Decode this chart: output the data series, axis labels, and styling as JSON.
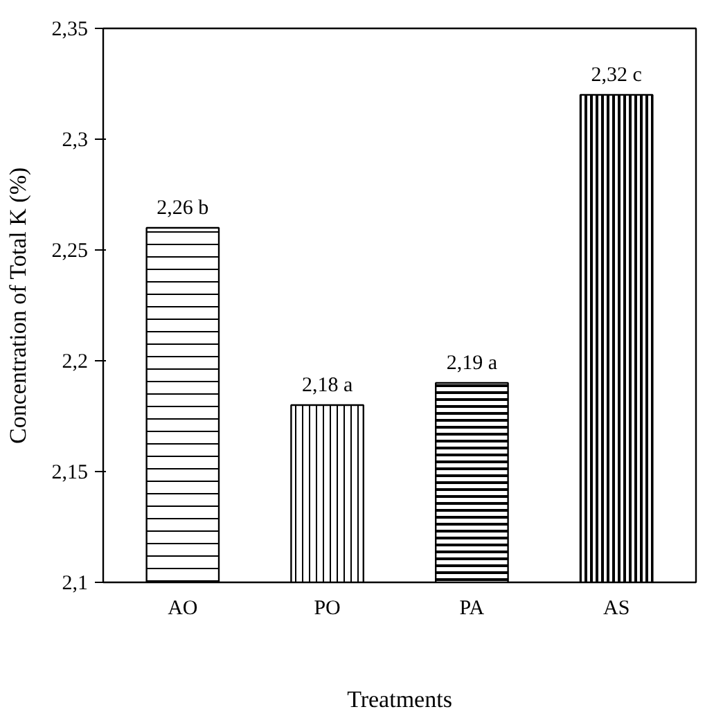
{
  "chart_data": {
    "type": "bar",
    "xlabel": "Treatments",
    "ylabel": "Concentration of Total K (%)",
    "categories": [
      "AO",
      "PO",
      "PA",
      "AS"
    ],
    "values": [
      2.26,
      2.18,
      2.19,
      2.32
    ],
    "value_labels": [
      "2,26 b",
      "2,18 a",
      "2,19 a",
      "2,32 c"
    ],
    "color": "#000000",
    "ylim": [
      2.1,
      2.35
    ],
    "yticks": [
      {
        "value": 2.1,
        "label": "2,1"
      },
      {
        "value": 2.15,
        "label": "2,15"
      },
      {
        "value": 2.2,
        "label": "2,2"
      },
      {
        "value": 2.25,
        "label": "2,25"
      },
      {
        "value": 2.3,
        "label": "2,3"
      },
      {
        "value": 2.35,
        "label": "2,35"
      }
    ],
    "grid": false
  }
}
